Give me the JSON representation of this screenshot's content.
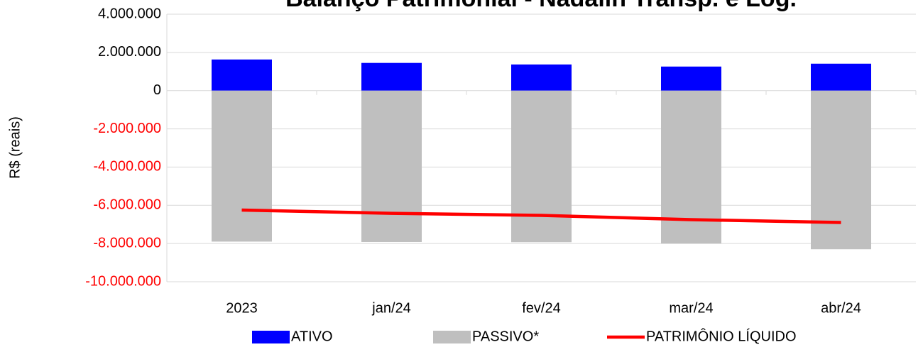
{
  "chart_data": {
    "type": "bar",
    "title": "Balanço Patrimonial - Nadalin Transp. e Log.",
    "y_label": "R$ (reais)",
    "categories": [
      "2023",
      "jan/24",
      "fev/24",
      "mar/24",
      "abr/24"
    ],
    "series": [
      {
        "name": "ATIVO",
        "type": "bar",
        "color": "#0000ff",
        "values": [
          1630000,
          1450000,
          1370000,
          1260000,
          1410000
        ]
      },
      {
        "name": "PASSIVO*",
        "type": "bar",
        "color": "#bfbfbf",
        "values": [
          -7900000,
          -7920000,
          -7930000,
          -8000000,
          -8300000
        ]
      },
      {
        "name": "PATRIMÔNIO LÍQUIDO",
        "type": "line",
        "color": "#ff0000",
        "values": [
          -6250000,
          -6420000,
          -6530000,
          -6750000,
          -6900000
        ]
      }
    ],
    "ylim": [
      -10000000,
      4000000
    ],
    "yticks": [
      {
        "value": -10000000,
        "label": "-10.000.000"
      },
      {
        "value": -8000000,
        "label": "-8.000.000"
      },
      {
        "value": -6000000,
        "label": "-6.000.000"
      },
      {
        "value": -4000000,
        "label": "-4.000.000"
      },
      {
        "value": -2000000,
        "label": "-2.000.000"
      },
      0,
      {
        "value": 2000000,
        "label": "2.000.000"
      },
      {
        "value": 4000000,
        "label": "4.000.000"
      }
    ],
    "negative_tick_color": "#ff0000",
    "grid": true,
    "legend": "bottom"
  }
}
